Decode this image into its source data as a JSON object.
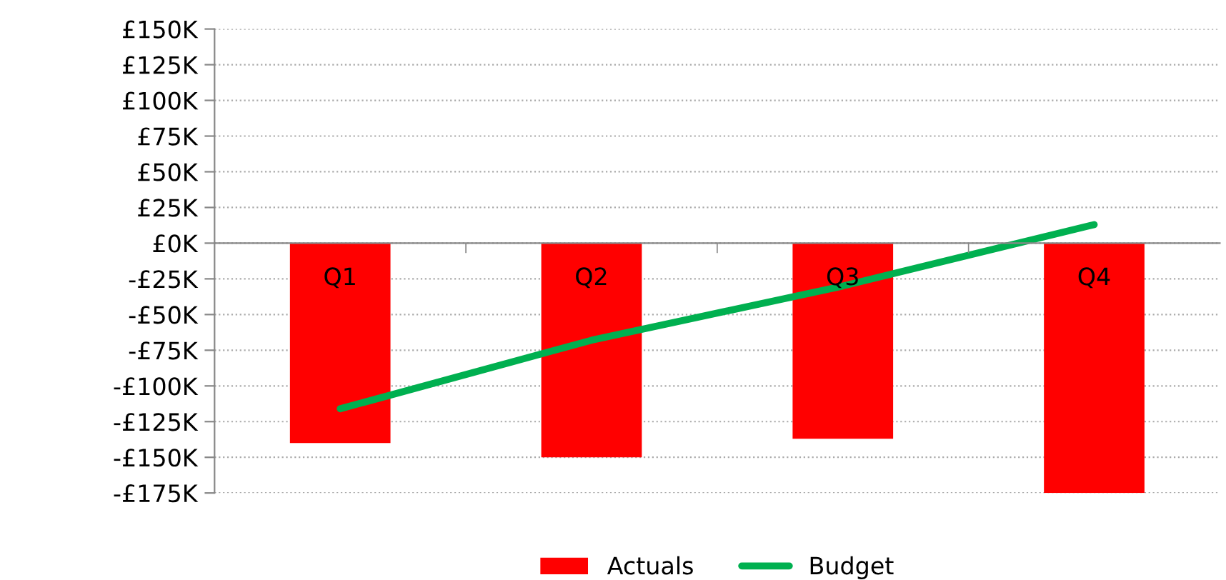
{
  "chart_data": {
    "type": "bar",
    "categories": [
      "Q1",
      "Q2",
      "Q3",
      "Q4"
    ],
    "series": [
      {
        "name": "Actuals",
        "color": "#ff0000",
        "values": [
          -140000,
          -150000,
          -137000,
          -175000
        ]
      },
      {
        "name": "Budget",
        "type": "line",
        "color": "#00b050",
        "values": [
          -116000,
          -68000,
          -30000,
          13000
        ]
      }
    ],
    "ylim": [
      -175000,
      150000
    ],
    "yticks": [
      {
        "value": -175000,
        "label": "-£175K"
      },
      {
        "value": -150000,
        "label": "-£150K"
      },
      {
        "value": -125000,
        "label": "-£125K"
      },
      {
        "value": -100000,
        "label": "-£100K"
      },
      {
        "value": -75000,
        "label": "-£75K"
      },
      {
        "value": -50000,
        "label": "-£50K"
      },
      {
        "value": -25000,
        "label": "-£25K"
      },
      {
        "value": 0,
        "label": "£0K"
      },
      {
        "value": 25000,
        "label": "£25K"
      },
      {
        "value": 50000,
        "label": "£50K"
      },
      {
        "value": 75000,
        "label": "£75K"
      },
      {
        "value": 100000,
        "label": "£100K"
      },
      {
        "value": 125000,
        "label": "£125K"
      },
      {
        "value": 150000,
        "label": "£150K"
      }
    ],
    "grid": "y",
    "legend": "bottom",
    "marker": "none",
    "line_style": "solid"
  }
}
